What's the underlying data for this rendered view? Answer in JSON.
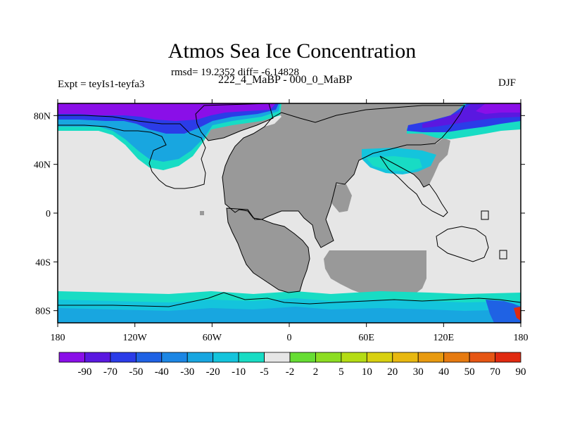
{
  "chart_data": {
    "type": "heatmap",
    "title": "Atmos Sea Ice Concentration",
    "subtitle": "rmsd= 19.2352 diff= -6.14828",
    "left_label": "Expt = teyIs1-teyfa3",
    "center_label": "222_4_MaBP - 000_0_MaBP",
    "right_label": "DJF",
    "x_ticks": [
      "180",
      "120W",
      "60W",
      "0",
      "60E",
      "120E",
      "180"
    ],
    "y_ticks": [
      "80N",
      "40N",
      "0",
      "40S",
      "80S"
    ],
    "xlim": [
      -180,
      180
    ],
    "ylim": [
      -90,
      90
    ],
    "colorbar_labels": [
      "-90",
      "-70",
      "-50",
      "-40",
      "-30",
      "-20",
      "-10",
      "-5",
      "-2",
      "2",
      "5",
      "10",
      "20",
      "30",
      "40",
      "50",
      "70",
      "90"
    ],
    "colorbar_colors": [
      "#8a0fe8",
      "#5a18e0",
      "#2b3ce8",
      "#1f62e4",
      "#1c86e4",
      "#18a6e0",
      "#14c4dc",
      "#18dcc4",
      "#e6e6e6",
      "#66dd33",
      "#8cdd22",
      "#b4dc14",
      "#d8d010",
      "#e8b810",
      "#e89a10",
      "#e67a10",
      "#e65614",
      "#e02a10"
    ],
    "colors": {
      "land": "#999999",
      "ocean": "#e6e6e6",
      "frame": "#000000"
    }
  }
}
